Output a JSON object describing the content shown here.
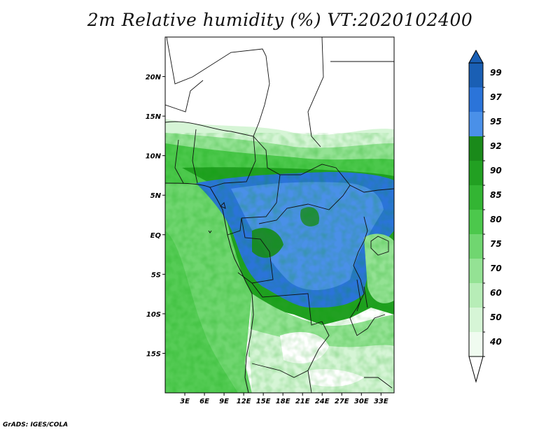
{
  "title": "2m Relative humidity (%) VT:2020102400",
  "credit": "GrADS: IGES/COLA",
  "lat_ticks": [
    "20N",
    "15N",
    "10N",
    "5N",
    "EQ",
    "5S",
    "10S",
    "15S"
  ],
  "lon_ticks": [
    "3E",
    "6E",
    "9E",
    "12E",
    "15E",
    "18E",
    "21E",
    "24E",
    "27E",
    "30E",
    "33E"
  ],
  "colorbar": {
    "labels": [
      "99",
      "97",
      "95",
      "92",
      "90",
      "85",
      "80",
      "75",
      "70",
      "60",
      "50",
      "40"
    ],
    "colors": [
      "#1a5fb4",
      "#2b74d9",
      "#4a90e8",
      "#1a8a1a",
      "#22a022",
      "#33b533",
      "#4cc84c",
      "#70d670",
      "#94e294",
      "#b7edb7",
      "#d6f5d6",
      "#f0fbf0"
    ]
  },
  "map": {
    "lon_range": [
      0,
      35
    ],
    "lat_range": [
      -20,
      25
    ]
  }
}
